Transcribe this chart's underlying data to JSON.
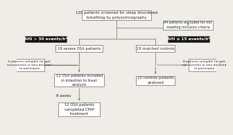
{
  "bg_color": "#f0ede8",
  "box_color": "#ffffff",
  "box_edge": "#666666",
  "black_box_bg": "#111111",
  "black_box_fg": "#ffffff",
  "title_box": "120 patients screened for sleep disordered\nbreathing by polysomnography",
  "excluded_box": "84 patients excluded for not\nmeeting inclusion criteria",
  "ahi_left_label": "AHI > 30 events/hᵃ",
  "ahi_right_label": "AHI ≤ 15 events/hᵃ",
  "severe_osa": "18 severe OSA patients",
  "matched_controls": "18 matched controls",
  "ineligible_left": "6 patients ineligible for gait\nassessments or who declined\nto participate",
  "ineligible_right": "8 patients ineligible for gait\nassessments or who declined\nto participate",
  "intention_box": "12 OSA patients included\nin intention to treat\nanalysis",
  "controls_analysed": "10 controls patients\nanalysed",
  "weeks_label": "8 weeks",
  "completed_box": "12 OSA patients\ncompleted CPAP\ntreatment",
  "lw": 0.5,
  "text_color": "#222222"
}
